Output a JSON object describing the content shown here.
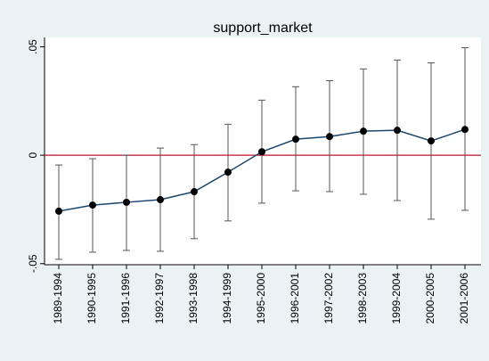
{
  "chart_data": {
    "type": "errorbar_line",
    "title": "support_market",
    "categories": [
      "1989-1994",
      "1990-1995",
      "1991-1996",
      "1992-1997",
      "1993-1998",
      "1994-1999",
      "1995-2000",
      "1996-2001",
      "1997-2002",
      "1998-2003",
      "1999-2004",
      "2000-2005",
      "2001-2006"
    ],
    "values": [
      -0.0258,
      -0.023,
      -0.0217,
      -0.0205,
      -0.0168,
      -0.0078,
      0.0016,
      0.0074,
      0.0086,
      0.0111,
      0.0115,
      0.0066,
      0.0119
    ],
    "lower": [
      -0.048,
      -0.0447,
      -0.0439,
      -0.0443,
      -0.0385,
      -0.0303,
      -0.0221,
      -0.0164,
      -0.0168,
      -0.018,
      -0.0209,
      -0.0295,
      -0.0254
    ],
    "upper": [
      -0.0045,
      -0.0016,
      0,
      0.0033,
      0.0049,
      0.0143,
      0.0254,
      0.0316,
      0.0344,
      0.0398,
      0.0439,
      0.0426,
      0.0496
    ],
    "color": "#1a476f",
    "errorbar_color": "#555555",
    "marker_color": "#000000",
    "reference_line": {
      "value": 0,
      "color": "#c0102a"
    },
    "ylim": [
      -0.0505,
      0.0535
    ],
    "yticks": [
      {
        "value": -0.05,
        "label": "-.05"
      },
      0,
      {
        "value": 0.05,
        "label": ".05"
      }
    ]
  }
}
